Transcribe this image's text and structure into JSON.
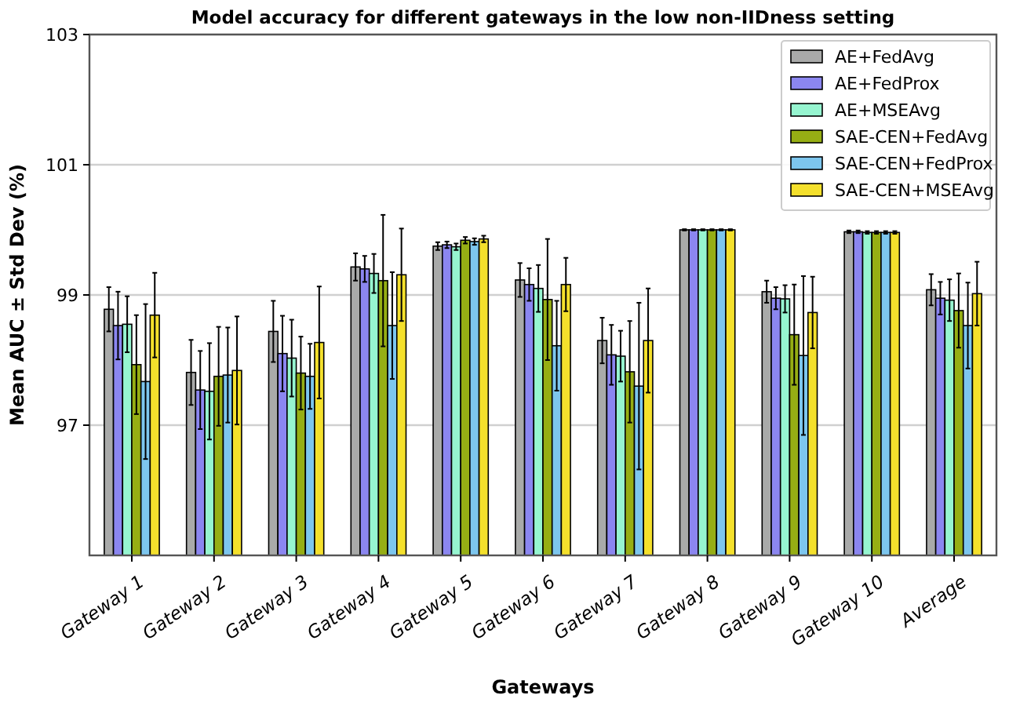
{
  "chart_data": {
    "type": "bar",
    "title": "Model accuracy for different gateways in the low non-IIDness setting",
    "xlabel": "Gateways",
    "ylabel": "Mean AUC ± Std Dev (%)",
    "categories": [
      "Gateway 1",
      "Gateway 2",
      "Gateway 3",
      "Gateway 4",
      "Gateway 5",
      "Gateway 6",
      "Gateway 7",
      "Gateway 8",
      "Gateway 9",
      "Gateway 10",
      "Average"
    ],
    "series": [
      {
        "name": "AE+FedAvg",
        "color": "#a9aaa9",
        "values": [
          98.78,
          97.81,
          98.44,
          99.43,
          99.75,
          99.23,
          98.3,
          100.0,
          99.05,
          99.97,
          99.08
        ],
        "errors": [
          0.34,
          0.5,
          0.47,
          0.21,
          0.06,
          0.26,
          0.35,
          0.01,
          0.17,
          0.02,
          0.24
        ]
      },
      {
        "name": "AE+FedProx",
        "color": "#8b86f0",
        "values": [
          98.53,
          97.54,
          98.1,
          99.4,
          99.77,
          99.16,
          98.08,
          100.0,
          98.95,
          99.97,
          98.95
        ],
        "errors": [
          0.52,
          0.6,
          0.58,
          0.2,
          0.05,
          0.25,
          0.46,
          0.01,
          0.17,
          0.02,
          0.25
        ]
      },
      {
        "name": "AE+MSEAvg",
        "color": "#96f5d0",
        "values": [
          98.55,
          97.52,
          98.03,
          99.33,
          99.74,
          99.1,
          98.06,
          100.0,
          98.94,
          99.96,
          98.92
        ],
        "errors": [
          0.43,
          0.74,
          0.59,
          0.3,
          0.05,
          0.36,
          0.39,
          0.01,
          0.21,
          0.02,
          0.32
        ]
      },
      {
        "name": "SAE-CEN+FedAvg",
        "color": "#96ae14",
        "values": [
          97.93,
          97.75,
          97.8,
          99.22,
          99.84,
          98.93,
          97.82,
          100.0,
          98.39,
          99.96,
          98.76
        ],
        "errors": [
          0.76,
          0.76,
          0.56,
          1.01,
          0.05,
          0.93,
          0.78,
          0.01,
          0.77,
          0.02,
          0.57
        ]
      },
      {
        "name": "SAE-CEN+FedProx",
        "color": "#7dc6ee",
        "values": [
          97.67,
          97.77,
          97.75,
          98.53,
          99.82,
          98.22,
          97.6,
          100.0,
          98.07,
          99.96,
          98.53
        ],
        "errors": [
          1.19,
          0.73,
          0.5,
          0.82,
          0.05,
          0.69,
          1.28,
          0.01,
          1.22,
          0.02,
          0.66
        ]
      },
      {
        "name": "SAE-CEN+MSEAvg",
        "color": "#f4e02c",
        "values": [
          98.69,
          97.84,
          98.27,
          99.31,
          99.86,
          99.16,
          98.3,
          100.0,
          98.73,
          99.96,
          99.02
        ],
        "errors": [
          0.65,
          0.83,
          0.86,
          0.71,
          0.05,
          0.41,
          0.8,
          0.01,
          0.55,
          0.02,
          0.49
        ]
      }
    ],
    "ylim": [
      95,
      103
    ],
    "yticks": [
      97,
      99,
      101,
      103
    ],
    "grid": "y",
    "legend": "top right"
  }
}
